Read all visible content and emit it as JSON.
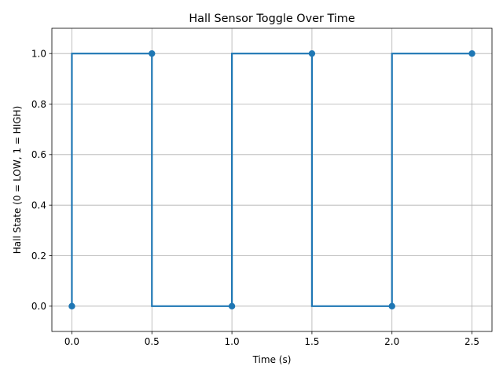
{
  "chart_data": {
    "type": "line",
    "title": "Hall Sensor Toggle Over Time",
    "xlabel": "Time (s)",
    "ylabel": "Hall State (0 = LOW, 1 = HIGH)",
    "xlim": [
      -0.125,
      2.625
    ],
    "ylim": [
      -0.1,
      1.1
    ],
    "xticks": [
      0.0,
      0.5,
      1.0,
      1.5,
      2.0,
      2.5
    ],
    "xtick_labels": [
      "0.0",
      "0.5",
      "1.0",
      "1.5",
      "2.0",
      "2.5"
    ],
    "yticks": [
      0.0,
      0.2,
      0.4,
      0.6,
      0.8,
      1.0
    ],
    "ytick_labels": [
      "0.0",
      "0.2",
      "0.4",
      "0.6",
      "0.8",
      "1.0"
    ],
    "grid": true,
    "drawstyle": "steps-pre",
    "series": [
      {
        "x": [
          0.0,
          0.5,
          1.0,
          1.5,
          2.0,
          2.5
        ],
        "y": [
          0,
          1,
          0,
          1,
          0,
          1
        ],
        "color": "#1f77b4",
        "marker": "circle"
      }
    ]
  }
}
